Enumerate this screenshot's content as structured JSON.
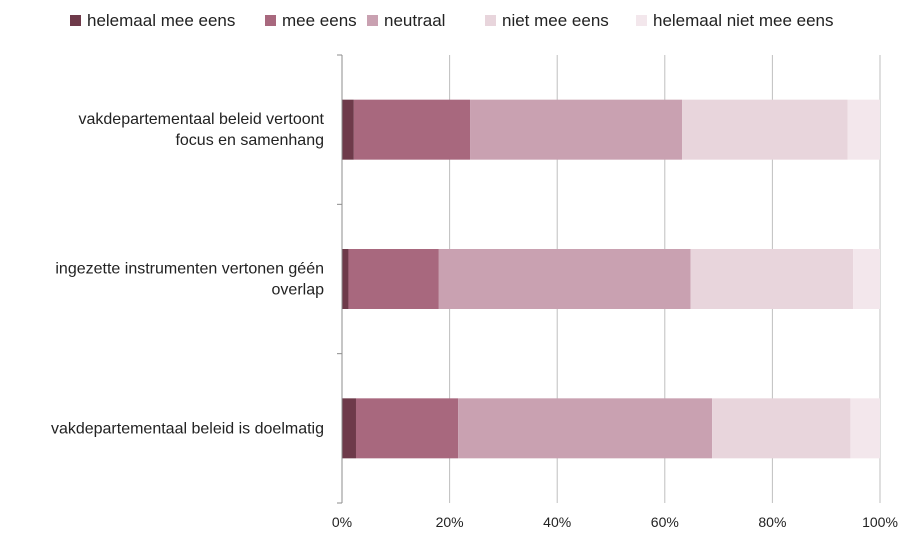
{
  "chart_data": {
    "type": "bar",
    "orientation": "horizontal",
    "stacked": true,
    "percent_stacked": true,
    "categories": [
      [
        "vakdepartementaal beleid vertoont",
        "focus en samenhang"
      ],
      [
        "ingezette instrumenten vertonen géén",
        "overlap"
      ],
      [
        "vakdepartementaal beleid is doelmatig"
      ]
    ],
    "series": [
      {
        "name": "helemaal mee eens",
        "color": "#6e3a4a",
        "values": [
          2.2,
          1.2,
          2.6
        ]
      },
      {
        "name": "mee eens",
        "color": "#a8687e",
        "values": [
          21.6,
          16.8,
          19.0
        ]
      },
      {
        "name": "neutraal",
        "color": "#c9a1b1",
        "values": [
          39.4,
          46.8,
          47.2
        ]
      },
      {
        "name": "niet mee eens",
        "color": "#e8d5dc",
        "values": [
          30.8,
          30.2,
          25.7
        ]
      },
      {
        "name": "helemaal niet mee eens",
        "color": "#f3e7ec",
        "values": [
          6.0,
          5.0,
          5.5
        ]
      }
    ],
    "x_ticks": [
      "0%",
      "20%",
      "40%",
      "60%",
      "80%",
      "100%"
    ],
    "xlim": [
      0,
      100
    ],
    "grid": true,
    "legend_position": "top",
    "title": "",
    "xlabel": "",
    "ylabel": ""
  }
}
